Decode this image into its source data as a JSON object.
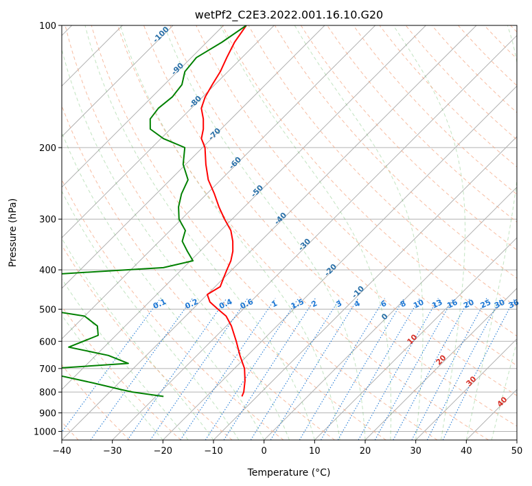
{
  "chart_data": {
    "type": "line",
    "title": "wetPf2_C2E3.2022.001.16.10.G20",
    "xlabel": "Temperature (°C)",
    "ylabel": "Pressure (hPa)",
    "xlim": [
      -40,
      50
    ],
    "ylim": [
      1050,
      100
    ],
    "y_scale": "log",
    "grid": true,
    "x_ticks": [
      -40,
      -30,
      -20,
      -10,
      0,
      10,
      20,
      30,
      40,
      50
    ],
    "y_ticks": [
      100,
      200,
      300,
      400,
      500,
      600,
      700,
      800,
      900,
      1000
    ],
    "series": [
      {
        "color": "#ff0000",
        "p": [
          100,
          110,
          120,
          130,
          140,
          150,
          160,
          170,
          180,
          190,
          200,
          220,
          240,
          260,
          280,
          300,
          320,
          340,
          360,
          380,
          400,
          420,
          440,
          460,
          480,
          500,
          520,
          550,
          600,
          650,
          700,
          750,
          800,
          820
        ],
        "t": [
          -85.5,
          -84.5,
          -83,
          -81.5,
          -80.5,
          -79.5,
          -78,
          -75.5,
          -73.5,
          -72,
          -69.5,
          -66,
          -62.5,
          -58.5,
          -55,
          -51.5,
          -48,
          -45.5,
          -43.5,
          -42,
          -41,
          -40,
          -39,
          -40,
          -38,
          -35,
          -32,
          -29,
          -25,
          -21.5,
          -18,
          -15.5,
          -13.5,
          -13
        ]
      },
      {
        "color": "#008000",
        "p": [
          100,
          110,
          120,
          130,
          140,
          150,
          160,
          170,
          180,
          190,
          200,
          220,
          240,
          260,
          280,
          300,
          320,
          340,
          360,
          380,
          395,
          410,
          420,
          430,
          440,
          460,
          480,
          500,
          520,
          550,
          580,
          620,
          650,
          680,
          700,
          720,
          760,
          790,
          800,
          820
        ],
        "t": [
          -85.5,
          -87,
          -89,
          -88.5,
          -86.5,
          -86,
          -86.5,
          -86,
          -84,
          -79.5,
          -73.5,
          -70.5,
          -66.5,
          -65,
          -63,
          -60.5,
          -57,
          -55.5,
          -52.5,
          -49.5,
          -54,
          -74,
          -93,
          -96,
          -100,
          -100,
          -95,
          -70,
          -60,
          -55.5,
          -53.5,
          -57,
          -47.5,
          -42,
          -56,
          -55.5,
          -45,
          -38,
          -35.5,
          -28.5
        ]
      }
    ],
    "dry_adiabat_labels": [
      "-100",
      "-90",
      "-80",
      "-70",
      "-60",
      "-50",
      "-40",
      "-30",
      "-20",
      "-10",
      "0",
      "10",
      "20",
      "30",
      "40"
    ],
    "mixing_ratio_labels": [
      "0.1",
      "0.2",
      "0.4",
      "0.6",
      "1",
      "1.5",
      "2",
      "3",
      "4",
      "6",
      "8",
      "10",
      "13",
      "16",
      "20",
      "25",
      "30",
      "36"
    ],
    "mixing_ratio_values": [
      0.1,
      0.2,
      0.4,
      0.6,
      1,
      1.5,
      2,
      3,
      4,
      6,
      8,
      10,
      13,
      16,
      20,
      25,
      30,
      36
    ]
  }
}
